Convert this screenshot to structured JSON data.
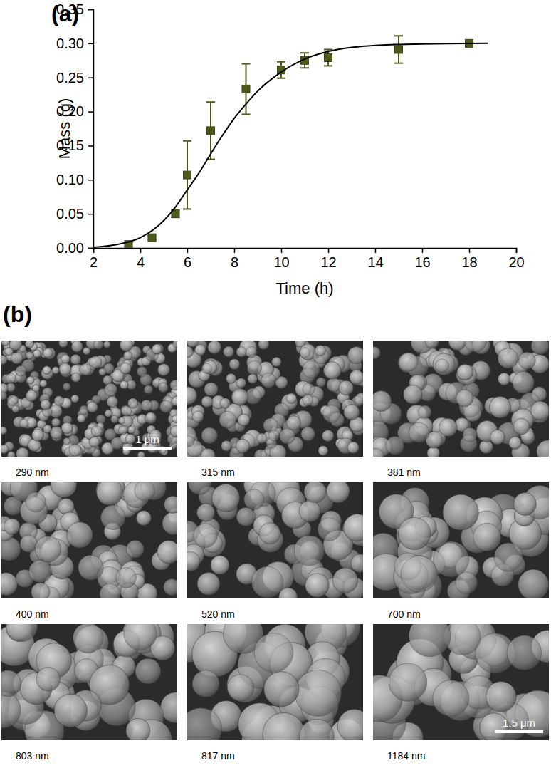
{
  "chart_data": {
    "type": "scatter",
    "title": "(a)",
    "x_label": "Time (h)",
    "y_label": "Mass (g)",
    "xlim": [
      2,
      20
    ],
    "xticks": [
      2,
      4,
      6,
      8,
      10,
      12,
      14,
      16,
      18,
      20
    ],
    "ylim": [
      0,
      0.35
    ],
    "yticks": [
      {
        "value": 0,
        "label": "0.00"
      },
      {
        "value": 0.05,
        "label": "0.05"
      },
      {
        "value": 0.1,
        "label": "0.10"
      },
      {
        "value": 0.15,
        "label": "0.15"
      },
      {
        "value": 0.2,
        "label": "0.20"
      },
      {
        "value": 0.25,
        "label": "0.25"
      },
      {
        "value": 0.3,
        "label": "0.30"
      },
      {
        "value": 0.35,
        "label": "0.35"
      }
    ],
    "grid": false,
    "series": [
      {
        "type": "scatter",
        "color": "#4d5a1c",
        "marker": "square",
        "x": [
          3.5,
          4.5,
          5.5,
          6,
          7,
          8.5,
          10,
          11,
          12,
          15,
          18
        ],
        "values": [
          0.005,
          0.015,
          0.05,
          0.107,
          0.172,
          0.233,
          0.261,
          0.275,
          0.279,
          0.291,
          0.3
        ],
        "errors": [
          0.003,
          0.003,
          0.005,
          0.05,
          0.042,
          0.037,
          0.012,
          0.011,
          0.012,
          0.02,
          0.003
        ]
      },
      {
        "type": "line",
        "color": "#000000",
        "line_style": "solid",
        "x": [
          2,
          3,
          4,
          5,
          5.5,
          6,
          6.5,
          7,
          7.5,
          8,
          8.5,
          9,
          10,
          11,
          12,
          13,
          14,
          16,
          18.8
        ],
        "values": [
          0.001,
          0.005,
          0.015,
          0.04,
          0.06,
          0.085,
          0.11,
          0.138,
          0.165,
          0.19,
          0.211,
          0.23,
          0.258,
          0.277,
          0.288,
          0.294,
          0.297,
          0.299,
          0.3
        ]
      }
    ]
  },
  "panel_b": {
    "label": "(b)",
    "images": [
      {
        "caption": "290 nm",
        "scale_bar": "1 μm"
      },
      {
        "caption": "315 nm"
      },
      {
        "caption": "381 nm"
      },
      {
        "caption": "400 nm"
      },
      {
        "caption": "520 nm"
      },
      {
        "caption": "700 nm"
      },
      {
        "caption": "803 nm"
      },
      {
        "caption": "817 nm"
      },
      {
        "caption": "1184 nm",
        "scale_bar": "1.5 μm"
      }
    ]
  }
}
